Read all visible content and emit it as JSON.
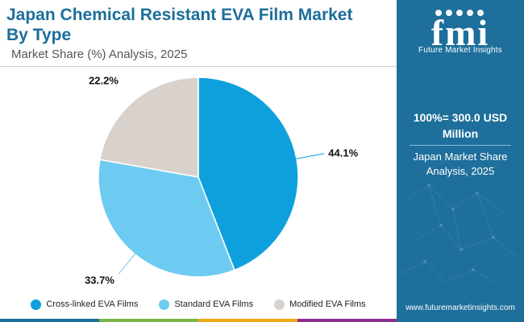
{
  "header": {
    "title": "Japan Chemical Resistant EVA Film Market By Type",
    "subtitle": "Market Share (%) Analysis, 2025"
  },
  "chart_data": {
    "type": "pie",
    "categories": [
      "Cross-linked EVA Films",
      "Standard EVA Films",
      "Modified EVA Films"
    ],
    "values": [
      44.1,
      33.7,
      22.2
    ],
    "data_labels": [
      "44.1%",
      "33.7%",
      "22.2%"
    ],
    "colors": [
      "#0da0dc",
      "#6dcbf1",
      "#d9d2cc"
    ],
    "start_angle_deg": 0,
    "direction": "clockwise",
    "legend_position": "bottom"
  },
  "sidebar": {
    "logo_text": "fmi",
    "tagline": "Future Market Insights",
    "total_value": "100%= 300.0 USD Million",
    "caption": "Japan Market Share Analysis, 2025",
    "website": "www.futuremarketinsights.com",
    "background_color": "#1e6f9b"
  },
  "footer_colors": [
    "#1e6f9b",
    "#7ab648",
    "#f0a818",
    "#8b2f8f"
  ]
}
